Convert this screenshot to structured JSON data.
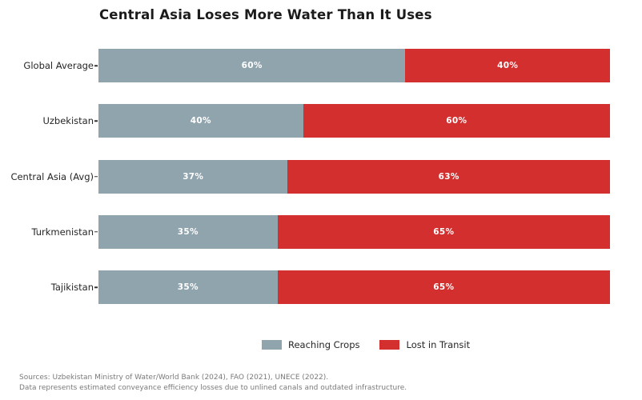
{
  "title": "Central Asia Loses More Water Than It Uses",
  "chart_data": {
    "type": "bar",
    "orientation": "horizontal",
    "stacked": true,
    "title": "Central Asia Loses More Water Than It Uses",
    "categories": [
      "Global Average",
      "Uzbekistan",
      "Central Asia (Avg)",
      "Turkmenistan",
      "Tajikistan"
    ],
    "series": [
      {
        "name": "Reaching Crops",
        "color": "#90a4ae",
        "values": [
          60,
          40,
          37,
          35,
          35
        ]
      },
      {
        "name": "Lost in Transit",
        "color": "#d32f2f",
        "values": [
          40,
          60,
          63,
          65,
          65
        ]
      }
    ],
    "bar_labels": [
      [
        "60%",
        "40%"
      ],
      [
        "40%",
        "60%"
      ],
      [
        "37%",
        "63%"
      ],
      [
        "35%",
        "65%"
      ],
      [
        "35%",
        "65%"
      ]
    ],
    "xlim": [
      0,
      100
    ],
    "grid": false,
    "legend_position": "bottom",
    "value_label_color": "#ffffff",
    "bar_label_format": "percent"
  },
  "footer": {
    "line1": "Sources: Uzbekistan Ministry of Water/World Bank (2024), FAO (2021), UNECE (2022).",
    "line2": "Data represents estimated conveyance efficiency losses due to unlined canals and outdated infrastructure."
  }
}
